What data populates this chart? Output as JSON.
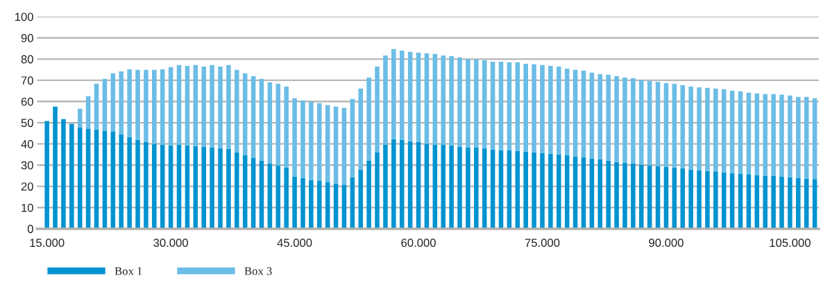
{
  "chart_data": {
    "type": "bar",
    "stacked": true,
    "categories": [
      "15.000",
      null,
      null,
      null,
      null,
      null,
      null,
      null,
      null,
      null,
      null,
      null,
      null,
      null,
      null,
      "30.000",
      null,
      null,
      null,
      null,
      null,
      null,
      null,
      null,
      null,
      null,
      null,
      null,
      null,
      null,
      "45.000",
      null,
      null,
      null,
      null,
      null,
      null,
      null,
      null,
      null,
      null,
      null,
      null,
      null,
      null,
      "60.000",
      null,
      null,
      null,
      null,
      null,
      null,
      null,
      null,
      null,
      null,
      null,
      null,
      null,
      null,
      "75.000",
      null,
      null,
      null,
      null,
      null,
      null,
      null,
      null,
      null,
      null,
      null,
      null,
      null,
      null,
      "90.000",
      null,
      null,
      null,
      null,
      null,
      null,
      null,
      null,
      null,
      null,
      null,
      null,
      null,
      null,
      "105.000",
      null,
      null,
      null
    ],
    "series": [
      {
        "name": "Box 1",
        "color": "#0093d0",
        "values": [
          50.8,
          57.6,
          51.7,
          49.5,
          47.8,
          47.2,
          46.8,
          46.2,
          45.9,
          44.6,
          43.3,
          42.0,
          41.0,
          40.0,
          39.7,
          39.3,
          39.7,
          39.3,
          39.0,
          38.7,
          38.4,
          38.0,
          37.7,
          36.1,
          34.8,
          33.5,
          32.2,
          30.9,
          29.8,
          28.9,
          24.7,
          24.0,
          23.0,
          22.7,
          22.1,
          21.4,
          20.8,
          24.3,
          27.9,
          32.2,
          36.1,
          39.7,
          42.3,
          42.0,
          41.3,
          41.0,
          40.0,
          39.7,
          39.7,
          39.3,
          38.7,
          38.4,
          38.4,
          38.0,
          37.4,
          37.1,
          37.1,
          36.7,
          36.4,
          36.1,
          35.8,
          35.4,
          35.1,
          34.8,
          34.1,
          33.8,
          33.2,
          32.8,
          32.2,
          31.5,
          31.2,
          30.9,
          30.2,
          29.9,
          29.6,
          29.2,
          28.9,
          28.6,
          27.9,
          27.6,
          27.3,
          27.0,
          26.6,
          26.3,
          26.0,
          25.7,
          25.3,
          25.0,
          25.0,
          24.7,
          24.3,
          24.0,
          23.7,
          23.4
        ]
      },
      {
        "name": "Box 3",
        "color": "#6bbde6",
        "values": [
          null,
          null,
          null,
          null,
          8.8,
          15.3,
          21.6,
          24.5,
          27.4,
          29.6,
          31.9,
          32.9,
          33.9,
          34.9,
          35.5,
          36.9,
          37.5,
          37.5,
          38.2,
          37.8,
          38.8,
          38.5,
          39.5,
          38.8,
          38.5,
          38.5,
          38.5,
          38.1,
          38.6,
          38.2,
          36.8,
          36.5,
          36.9,
          36.5,
          36.2,
          36.2,
          36.2,
          36.9,
          38.2,
          39.1,
          40.4,
          42.0,
          42.4,
          42.0,
          42.1,
          42.0,
          42.7,
          42.7,
          42.0,
          42.1,
          42.1,
          41.7,
          41.4,
          41.5,
          41.4,
          41.7,
          41.4,
          41.8,
          41.4,
          41.4,
          41.4,
          41.4,
          41.4,
          40.7,
          40.8,
          40.8,
          40.4,
          40.1,
          40.4,
          40.5,
          40.1,
          40.1,
          40.1,
          39.8,
          39.7,
          39.5,
          39.5,
          39.1,
          39.2,
          39.1,
          39.1,
          39.1,
          39.2,
          38.8,
          38.8,
          38.4,
          38.5,
          38.5,
          38.5,
          38.5,
          38.5,
          38.2,
          38.5,
          38.1
        ]
      }
    ],
    "ylim": [
      0,
      100
    ],
    "yticks": [
      0,
      10,
      20,
      30,
      40,
      50,
      60,
      70,
      80,
      90,
      100
    ],
    "grid": "y",
    "legend": "bottom left"
  }
}
